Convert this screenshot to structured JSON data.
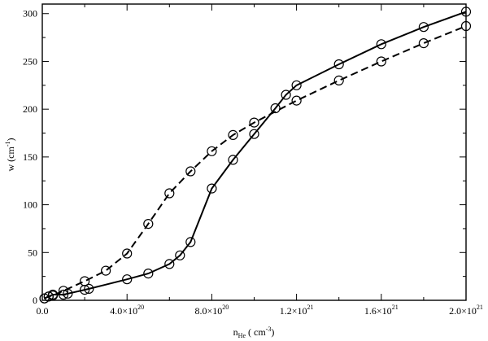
{
  "chart_data": {
    "type": "line",
    "xlabel": {
      "base": "n",
      "sub": "He",
      "rest": " ( cm",
      "sup": "-3",
      "close": ")"
    },
    "ylabel": {
      "base": "w (cm",
      "sup": "-1",
      "close": ")"
    },
    "xlim": [
      0,
      2e+21
    ],
    "ylim": [
      0,
      310
    ],
    "x_ticks": [
      {
        "value": 4e+20,
        "mant": "4.0×10",
        "exp": "20"
      },
      {
        "value": 8e+20,
        "mant": "8.0×10",
        "exp": "20"
      },
      {
        "value": 1.2e+21,
        "mant": "1.2×10",
        "exp": "21"
      },
      {
        "value": 1.6e+21,
        "mant": "1.6×10",
        "exp": "21"
      },
      {
        "value": 2e+21,
        "mant": "2.0×10",
        "exp": "21"
      }
    ],
    "x_zero_label": "0.0",
    "y_ticks": [
      0,
      50,
      100,
      150,
      200,
      250,
      300
    ],
    "grid": false,
    "series": [
      {
        "style": "solid",
        "marker": "circle",
        "points": [
          [
            1e+19,
            2
          ],
          [
            3e+19,
            4
          ],
          [
            5e+19,
            6
          ],
          [
            1e+20,
            6
          ],
          [
            1.2e+20,
            7
          ],
          [
            2e+20,
            11
          ],
          [
            2.2e+20,
            12
          ],
          [
            4e+20,
            22
          ],
          [
            5e+20,
            28
          ],
          [
            6e+20,
            38
          ],
          [
            6.5e+20,
            47
          ],
          [
            7e+20,
            61
          ],
          [
            8e+20,
            117
          ],
          [
            9e+20,
            147
          ],
          [
            1e+21,
            174
          ],
          [
            1.1e+21,
            201
          ],
          [
            1.15e+21,
            215
          ],
          [
            1.2e+21,
            225
          ],
          [
            1.4e+21,
            247
          ],
          [
            1.6e+21,
            268
          ],
          [
            1.8e+21,
            286
          ],
          [
            2e+21,
            302
          ]
        ]
      },
      {
        "style": "dashed",
        "marker": "circle",
        "points": [
          [
            1e+19,
            2
          ],
          [
            3e+19,
            4
          ],
          [
            5e+19,
            5
          ],
          [
            1e+20,
            10
          ],
          [
            2e+20,
            20
          ],
          [
            3e+20,
            31
          ],
          [
            4e+20,
            49
          ],
          [
            5e+20,
            80
          ],
          [
            6e+20,
            112
          ],
          [
            7e+20,
            135
          ],
          [
            8e+20,
            156
          ],
          [
            9e+20,
            173
          ],
          [
            1e+21,
            186
          ],
          [
            1.2e+21,
            209
          ],
          [
            1.4e+21,
            230
          ],
          [
            1.6e+21,
            250
          ],
          [
            1.8e+21,
            269
          ],
          [
            2e+21,
            287
          ]
        ]
      }
    ]
  }
}
